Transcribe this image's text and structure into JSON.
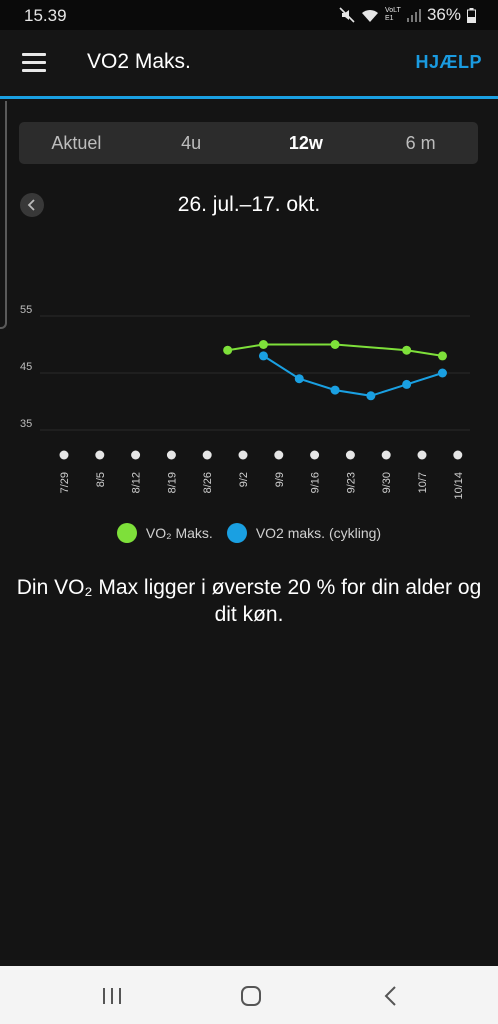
{
  "status": {
    "time": "15.39",
    "battery": "36%",
    "network_label": "VoLTE1"
  },
  "header": {
    "title": "VO2 Maks.",
    "help_label": "HJÆLP"
  },
  "tabs": [
    {
      "label": "Aktuel",
      "active": false
    },
    {
      "label": "4u",
      "active": false
    },
    {
      "label": "12w",
      "active": true
    },
    {
      "label": "6 m",
      "active": false
    }
  ],
  "date_range": "26. jul.–17. okt.",
  "chart_data": {
    "type": "line",
    "x": [
      "7/29",
      "8/5",
      "8/12",
      "8/19",
      "8/26",
      "9/2",
      "9/9",
      "9/16",
      "9/23",
      "9/30",
      "10/7",
      "10/14"
    ],
    "y_ticks": [
      35,
      45,
      55
    ],
    "ylim": [
      35,
      55
    ],
    "series": [
      {
        "name": "VO₂ Maks.",
        "color": "#7ee03a",
        "points": [
          [
            "8/30",
            49
          ],
          [
            "9/6",
            50
          ],
          [
            "9/20",
            50
          ],
          [
            "10/4",
            49
          ],
          [
            "10/11",
            48
          ]
        ]
      },
      {
        "name": "VO2 maks. (cykling)",
        "color": "#1aa0e2",
        "points": [
          [
            "9/6",
            48
          ],
          [
            "9/13",
            44
          ],
          [
            "9/20",
            42
          ],
          [
            "9/27",
            41
          ],
          [
            "10/4",
            43
          ],
          [
            "10/11",
            45
          ]
        ]
      }
    ],
    "grid": true
  },
  "legend": [
    {
      "label": "VO₂ Maks.",
      "color": "#7ee03a"
    },
    {
      "label": "VO2 maks. (cykling)",
      "color": "#1aa0e2"
    }
  ],
  "message": "Din VO₂ Max ligger i øverste 20 % for din alder og dit køn.",
  "nav": {
    "recent_icon": "recent-apps-icon",
    "home_icon": "home-icon",
    "back_icon": "back-icon"
  }
}
